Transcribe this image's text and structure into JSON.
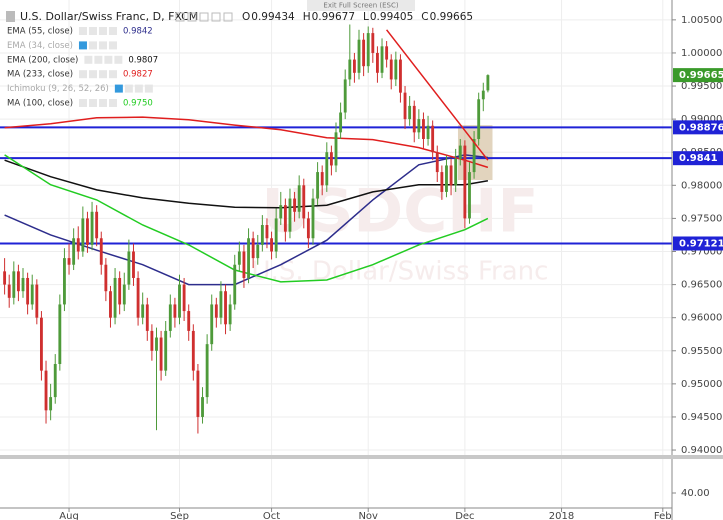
{
  "header": {
    "exit_button": "Exit Full Screen (ESC)",
    "symbol": "U.S. Dollar/Swiss Franc, D, FXCM",
    "ohlc": [
      {
        "label": "O",
        "value": 0.99434
      },
      {
        "label": "H",
        "value": 0.99677
      },
      {
        "label": "L",
        "value": 0.99405
      },
      {
        "label": "C",
        "value": 0.99665
      }
    ]
  },
  "chart_data": {
    "type": "candlestick",
    "watermark": {
      "symbol": "USDCHF",
      "description": "U.S. Dollar/Swiss Franc"
    },
    "up_color": "#4e9a3a",
    "down_color": "#cf2f2f",
    "grid": true,
    "xlim": [
      -1,
      145
    ],
    "xticks": [
      {
        "value": 14,
        "label": "Aug"
      },
      {
        "value": 38,
        "label": "Sep"
      },
      {
        "value": 58,
        "label": "Oct"
      },
      {
        "value": 79,
        "label": "Nov"
      },
      {
        "value": 100,
        "label": "Dec"
      },
      {
        "value": 121,
        "label": "2018"
      },
      {
        "value": 143,
        "label": "Feb"
      }
    ],
    "ylim": [
      0.9391,
      1.008
    ],
    "yticks": [
      {
        "value": 1.005,
        "label": "1.00500"
      },
      {
        "value": 1.0,
        "label": "1.00000"
      },
      {
        "value": 0.995,
        "label": "0.99500"
      },
      {
        "value": 0.99,
        "label": "0.99000"
      },
      {
        "value": 0.985,
        "label": "0.98500"
      },
      {
        "value": 0.98,
        "label": "0.98000"
      },
      {
        "value": 0.975,
        "label": "0.97500"
      },
      {
        "value": 0.97,
        "label": "0.97000"
      },
      {
        "value": 0.965,
        "label": "0.96500"
      },
      {
        "value": 0.96,
        "label": "0.96000"
      },
      {
        "value": 0.955,
        "label": "0.95500"
      },
      {
        "value": 0.95,
        "label": "0.95000"
      },
      {
        "value": 0.945,
        "label": "0.94500"
      },
      {
        "value": 0.94,
        "label": "0.94000"
      }
    ],
    "lower_pane_yticks": [
      {
        "value": 40,
        "label": "40.00"
      }
    ],
    "candles": [
      [
        0.967,
        0.969,
        0.9635,
        0.965
      ],
      [
        0.965,
        0.9665,
        0.9615,
        0.963
      ],
      [
        0.963,
        0.9685,
        0.962,
        0.967
      ],
      [
        0.967,
        0.968,
        0.9625,
        0.964
      ],
      [
        0.964,
        0.9675,
        0.963,
        0.966
      ],
      [
        0.966,
        0.9668,
        0.9605,
        0.962
      ],
      [
        0.962,
        0.9665,
        0.9612,
        0.965
      ],
      [
        0.965,
        0.9658,
        0.959,
        0.96
      ],
      [
        0.96,
        0.961,
        0.9505,
        0.952
      ],
      [
        0.952,
        0.9535,
        0.944,
        0.946
      ],
      [
        0.946,
        0.95,
        0.9445,
        0.948
      ],
      [
        0.948,
        0.9545,
        0.947,
        0.953
      ],
      [
        0.953,
        0.9635,
        0.952,
        0.962
      ],
      [
        0.962,
        0.9705,
        0.961,
        0.969
      ],
      [
        0.969,
        0.9712,
        0.9665,
        0.968
      ],
      [
        0.968,
        0.9735,
        0.9672,
        0.972
      ],
      [
        0.972,
        0.9738,
        0.9688,
        0.97
      ],
      [
        0.97,
        0.9768,
        0.9692,
        0.975
      ],
      [
        0.975,
        0.976,
        0.9698,
        0.971
      ],
      [
        0.971,
        0.9775,
        0.9702,
        0.976
      ],
      [
        0.976,
        0.977,
        0.9708,
        0.972
      ],
      [
        0.972,
        0.973,
        0.9665,
        0.968
      ],
      [
        0.968,
        0.969,
        0.9625,
        0.964
      ],
      [
        0.964,
        0.9648,
        0.9585,
        0.96
      ],
      [
        0.96,
        0.9675,
        0.959,
        0.966
      ],
      [
        0.966,
        0.967,
        0.9605,
        0.962
      ],
      [
        0.962,
        0.9668,
        0.961,
        0.965
      ],
      [
        0.965,
        0.9718,
        0.9642,
        0.97
      ],
      [
        0.97,
        0.9712,
        0.9648,
        0.966
      ],
      [
        0.966,
        0.967,
        0.9588,
        0.96
      ],
      [
        0.96,
        0.9638,
        0.959,
        0.962
      ],
      [
        0.962,
        0.963,
        0.9565,
        0.958
      ],
      [
        0.958,
        0.959,
        0.9535,
        0.955
      ],
      [
        0.955,
        0.9585,
        0.943,
        0.957
      ],
      [
        0.957,
        0.958,
        0.9505,
        0.952
      ],
      [
        0.952,
        0.9595,
        0.9512,
        0.958
      ],
      [
        0.958,
        0.9635,
        0.957,
        0.962
      ],
      [
        0.962,
        0.963,
        0.9585,
        0.96
      ],
      [
        0.96,
        0.9665,
        0.959,
        0.965
      ],
      [
        0.965,
        0.966,
        0.9595,
        0.961
      ],
      [
        0.961,
        0.962,
        0.9565,
        0.958
      ],
      [
        0.958,
        0.959,
        0.9505,
        0.952
      ],
      [
        0.952,
        0.953,
        0.9425,
        0.945
      ],
      [
        0.945,
        0.9495,
        0.944,
        0.948
      ],
      [
        0.948,
        0.9575,
        0.947,
        0.956
      ],
      [
        0.956,
        0.9635,
        0.955,
        0.962
      ],
      [
        0.962,
        0.963,
        0.9585,
        0.96
      ],
      [
        0.96,
        0.9655,
        0.959,
        0.964
      ],
      [
        0.964,
        0.965,
        0.9575,
        0.959
      ],
      [
        0.959,
        0.9635,
        0.958,
        0.962
      ],
      [
        0.962,
        0.9695,
        0.9612,
        0.968
      ],
      [
        0.968,
        0.9715,
        0.967,
        0.97
      ],
      [
        0.97,
        0.971,
        0.9645,
        0.966
      ],
      [
        0.966,
        0.9735,
        0.9652,
        0.972
      ],
      [
        0.972,
        0.973,
        0.9675,
        0.969
      ],
      [
        0.969,
        0.9725,
        0.968,
        0.971
      ],
      [
        0.971,
        0.9755,
        0.97,
        0.974
      ],
      [
        0.974,
        0.975,
        0.9705,
        0.972
      ],
      [
        0.972,
        0.973,
        0.9688,
        0.97
      ],
      [
        0.97,
        0.9765,
        0.969,
        0.975
      ],
      [
        0.975,
        0.979,
        0.974,
        0.977
      ],
      [
        0.977,
        0.978,
        0.9715,
        0.973
      ],
      [
        0.973,
        0.9795,
        0.972,
        0.978
      ],
      [
        0.978,
        0.979,
        0.9745,
        0.976
      ],
      [
        0.976,
        0.9815,
        0.975,
        0.98
      ],
      [
        0.98,
        0.981,
        0.9735,
        0.975
      ],
      [
        0.975,
        0.976,
        0.9705,
        0.972
      ],
      [
        0.972,
        0.9795,
        0.971,
        0.978
      ],
      [
        0.978,
        0.9835,
        0.977,
        0.982
      ],
      [
        0.982,
        0.983,
        0.9785,
        0.98
      ],
      [
        0.98,
        0.9865,
        0.979,
        0.985
      ],
      [
        0.985,
        0.986,
        0.9815,
        0.983
      ],
      [
        0.983,
        0.9895,
        0.982,
        0.988
      ],
      [
        0.988,
        0.9925,
        0.987,
        0.991
      ],
      [
        0.991,
        0.9975,
        0.99,
        0.996
      ],
      [
        0.996,
        1.0043,
        0.995,
        0.999
      ],
      [
        0.999,
        1.0,
        0.9955,
        0.997
      ],
      [
        0.997,
        1.0035,
        0.996,
        1.002
      ],
      [
        1.002,
        1.003,
        0.9965,
        0.998
      ],
      [
        0.998,
        1.004,
        0.997,
        1.003
      ],
      [
        1.003,
        1.0038,
        0.9985,
        1.0
      ],
      [
        1.0,
        1.001,
        0.9955,
        0.997
      ],
      [
        0.997,
        1.0022,
        0.9962,
        1.001
      ],
      [
        1.001,
        1.0018,
        0.9978,
        0.999
      ],
      [
        0.999,
        0.9998,
        0.9945,
        0.996
      ],
      [
        0.996,
        1.0002,
        0.995,
        0.999
      ],
      [
        0.999,
        0.9998,
        0.9925,
        0.994
      ],
      [
        0.994,
        0.995,
        0.9885,
        0.99
      ],
      [
        0.99,
        0.9935,
        0.989,
        0.992
      ],
      [
        0.992,
        0.9928,
        0.9865,
        0.988
      ],
      [
        0.988,
        0.9915,
        0.987,
        0.99
      ],
      [
        0.99,
        0.991,
        0.9855,
        0.987
      ],
      [
        0.987,
        0.9905,
        0.986,
        0.989
      ],
      [
        0.989,
        0.9898,
        0.9838,
        0.985
      ],
      [
        0.985,
        0.986,
        0.9805,
        0.982
      ],
      [
        0.982,
        0.983,
        0.9778,
        0.979
      ],
      [
        0.979,
        0.9845,
        0.9782,
        0.983
      ],
      [
        0.983,
        0.984,
        0.9785,
        0.98
      ],
      [
        0.98,
        0.9855,
        0.979,
        0.984
      ],
      [
        0.984,
        0.987,
        0.983,
        0.986
      ],
      [
        0.986,
        0.9868,
        0.9735,
        0.975
      ],
      [
        0.975,
        0.9835,
        0.9742,
        0.982
      ],
      [
        0.982,
        0.9882,
        0.981,
        0.987
      ],
      [
        0.987,
        0.994,
        0.986,
        0.993
      ],
      [
        0.993,
        0.9955,
        0.9912,
        0.9943
      ],
      [
        0.99434,
        0.99677,
        0.99405,
        0.99665
      ]
    ],
    "indicators": [
      {
        "name": "EMA (55, close)",
        "color": "#2d2d8c",
        "legend_value": 0.9842,
        "x": [
          0,
          10,
          20,
          30,
          40,
          50,
          60,
          70,
          80,
          90,
          100,
          105
        ],
        "values": [
          0.9755,
          0.9725,
          0.9702,
          0.968,
          0.965,
          0.965,
          0.968,
          0.9717,
          0.9778,
          0.9831,
          0.9846,
          0.9842
        ]
      },
      {
        "name": "EMA (34, close)",
        "color": "#9a9a9a"
      },
      {
        "name": "EMA (200, close)",
        "color": "#111111",
        "legend_value": 0.9807,
        "x": [
          0,
          10,
          20,
          30,
          40,
          50,
          60,
          70,
          80,
          90,
          100,
          105
        ],
        "values": [
          0.9838,
          0.9813,
          0.9793,
          0.9781,
          0.9773,
          0.9767,
          0.9766,
          0.977,
          0.979,
          0.9801,
          0.9801,
          0.9807
        ]
      },
      {
        "name": "MA (233, close)",
        "color": "#e01e1e",
        "legend_value": 0.9827,
        "x": [
          0,
          10,
          20,
          30,
          40,
          50,
          60,
          70,
          80,
          90,
          100,
          105
        ],
        "values": [
          0.9887,
          0.9893,
          0.9902,
          0.9903,
          0.9899,
          0.9891,
          0.9884,
          0.9872,
          0.9869,
          0.9857,
          0.9838,
          0.9827
        ]
      },
      {
        "name": "Ichimoku (9, 26, 52, 26)",
        "color": "#9a9a9a"
      },
      {
        "name": "MA (100, close)",
        "color": "#22cc22",
        "legend_value": {
          "value": 0.975,
          "label": "0.9750"
        },
        "x": [
          0,
          10,
          20,
          30,
          40,
          50,
          60,
          70,
          80,
          90,
          100,
          105
        ],
        "values": [
          0.9846,
          0.9801,
          0.9778,
          0.974,
          0.971,
          0.9672,
          0.9654,
          0.9657,
          0.968,
          0.971,
          0.9733,
          0.975
        ]
      }
    ],
    "levels": [
      {
        "value": 0.98876,
        "color": "#1f22d6"
      },
      {
        "value": 0.9841,
        "color": "#1f22d6"
      },
      {
        "value": 0.97121,
        "color": "#1f22d6"
      }
    ],
    "last_price": {
      "value": 0.99665,
      "color": "#3a9a2a"
    },
    "trendline": {
      "x": [
        83,
        105
      ],
      "values": [
        1.0035,
        0.9838
      ],
      "color": "#e01e1e"
    },
    "zone": {
      "x": [
        98.5,
        106
      ],
      "values": [
        0.9891,
        0.9808
      ],
      "color": "rgba(190,160,110,0.45)"
    }
  }
}
